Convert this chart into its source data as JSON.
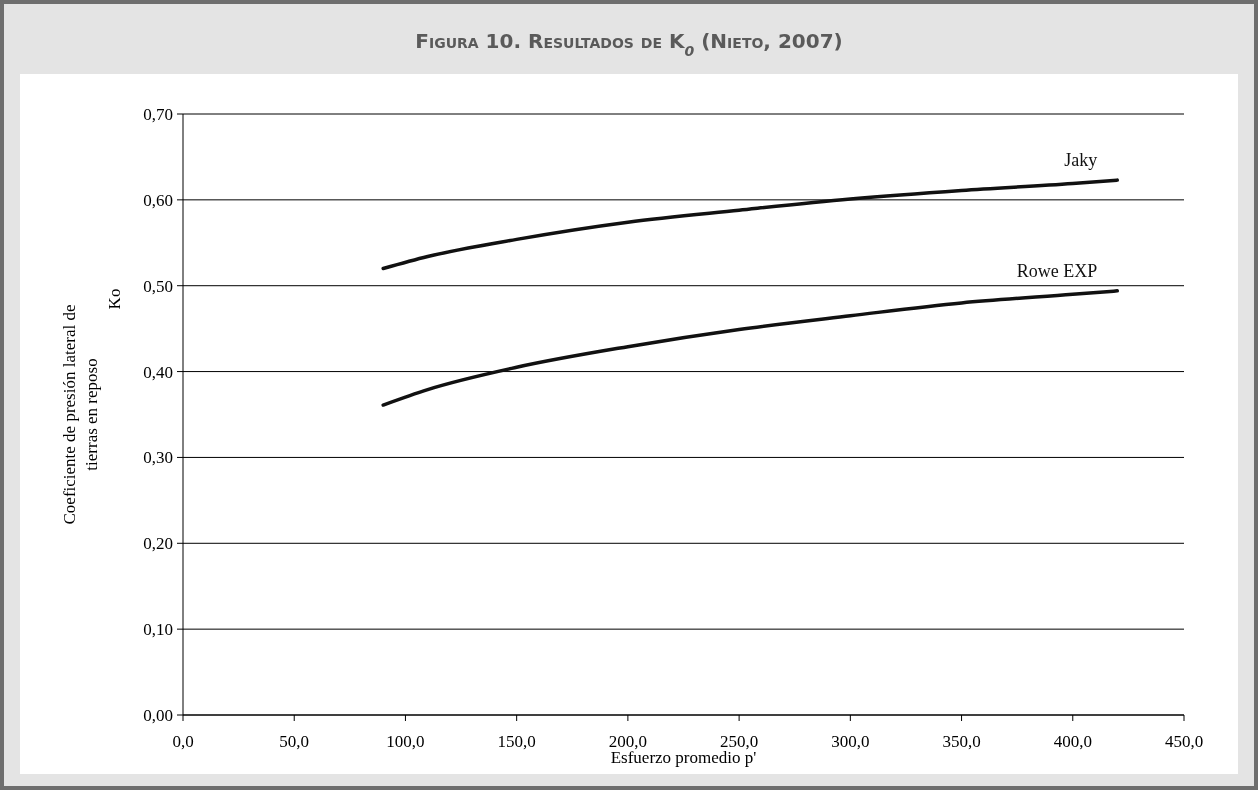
{
  "chart_data": {
    "type": "line",
    "title": "Figura 10. Resultados de K$_{0}$ (Nieto, 2007)",
    "xlabel": "Esfuerzo promedio p'",
    "ylabel": "Coeficiente de presión lateral de\ntierras  en reposo\nKo",
    "xlim": [
      0,
      450
    ],
    "ylim": [
      0,
      0.7
    ],
    "xticks": [
      {
        "value": 0,
        "label": "0,0"
      },
      {
        "value": 50,
        "label": "50,0"
      },
      {
        "value": 100,
        "label": "100,0"
      },
      {
        "value": 150,
        "label": "150,0"
      },
      {
        "value": 200,
        "label": "200,0"
      },
      {
        "value": 250,
        "label": "250,0"
      },
      {
        "value": 300,
        "label": "300,0"
      },
      {
        "value": 350,
        "label": "350,0"
      },
      {
        "value": 400,
        "label": "400,0"
      },
      {
        "value": 450,
        "label": "450,0"
      }
    ],
    "yticks": [
      {
        "value": 0,
        "label": "0,00"
      },
      {
        "value": 0.1,
        "label": "0,10"
      },
      {
        "value": 0.2,
        "label": "0,20"
      },
      {
        "value": 0.3,
        "label": "0,30"
      },
      {
        "value": 0.4,
        "label": "0,40"
      },
      {
        "value": 0.5,
        "label": "0,50"
      },
      {
        "value": 0.6,
        "label": "0,60"
      },
      {
        "value": 0.7,
        "label": "0,70"
      }
    ],
    "grid": "y",
    "marker": "none",
    "line_style": "solid",
    "x": [
      90,
      110,
      150,
      200,
      250,
      300,
      350,
      400,
      420
    ],
    "series": [
      {
        "name": "Jaky",
        "color": "#111111",
        "values": [
          0.52,
          0.534,
          0.554,
          0.574,
          0.588,
          0.601,
          0.611,
          0.619,
          0.623
        ]
      },
      {
        "name": "Rowe EXP",
        "color": "#111111",
        "values": [
          0.361,
          0.379,
          0.405,
          0.429,
          0.449,
          0.465,
          0.48,
          0.49,
          0.494
        ]
      }
    ]
  }
}
